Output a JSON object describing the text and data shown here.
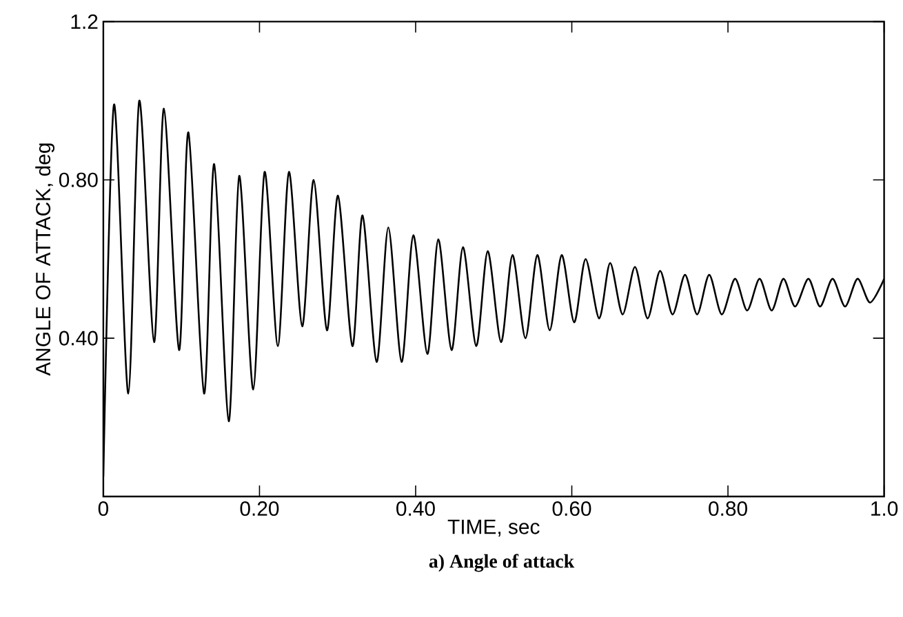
{
  "chart_data": {
    "type": "line",
    "title": "**a) Angle of attack**",
    "xlabel": "TIME, sec",
    "ylabel": "ANGLE OF ATTACK, deg",
    "xlim": [
      0,
      1.0
    ],
    "ylim": [
      0,
      1.2
    ],
    "xticks": [
      0,
      {
        "value": 0.2,
        "label": "0.20"
      },
      {
        "value": 0.4,
        "label": "0.40"
      },
      {
        "value": 0.6,
        "label": "0.60"
      },
      {
        "value": 0.8,
        "label": "0.80"
      },
      {
        "value": 1.0,
        "label": "1.0"
      }
    ],
    "yticks": [
      {
        "value": 0,
        "label": null
      },
      {
        "value": 0.4,
        "label": "0.40"
      },
      {
        "value": 0.8,
        "label": "0.80"
      },
      {
        "value": 1.2,
        "label": "1.2"
      }
    ],
    "marker": "none",
    "line_style": "solid",
    "series": [
      {
        "color": "#000000",
        "x": [
          0,
          0.0136,
          0.032,
          0.046,
          0.065,
          0.0776,
          0.097,
          0.109,
          0.129,
          0.142,
          0.1606,
          0.174,
          0.192,
          0.2065,
          0.2235,
          0.2377,
          0.2547,
          0.2694,
          0.2864,
          0.3005,
          0.319,
          0.332,
          0.35,
          0.365,
          0.382,
          0.397,
          0.415,
          0.429,
          0.446,
          0.4606,
          0.4776,
          0.4923,
          0.5094,
          0.524,
          0.5406,
          0.5558,
          0.5717,
          0.587,
          0.603,
          0.6176,
          0.635,
          0.649,
          0.665,
          0.681,
          0.697,
          0.713,
          0.729,
          0.745,
          0.7605,
          0.776,
          0.792,
          0.809,
          0.8246,
          0.8405,
          0.856,
          0.871,
          0.886,
          0.903,
          0.918,
          0.934,
          0.95,
          0.966,
          0.982,
          1.0
        ],
        "values": [
          0.05,
          0.99,
          0.26,
          1.0,
          0.39,
          0.98,
          0.37,
          0.92,
          0.26,
          0.84,
          0.19,
          0.81,
          0.27,
          0.82,
          0.38,
          0.82,
          0.43,
          0.8,
          0.42,
          0.76,
          0.38,
          0.71,
          0.34,
          0.68,
          0.34,
          0.66,
          0.36,
          0.65,
          0.37,
          0.63,
          0.38,
          0.62,
          0.39,
          0.61,
          0.4,
          0.61,
          0.42,
          0.61,
          0.44,
          0.6,
          0.45,
          0.59,
          0.46,
          0.58,
          0.45,
          0.57,
          0.46,
          0.56,
          0.46,
          0.56,
          0.46,
          0.55,
          0.47,
          0.55,
          0.47,
          0.55,
          0.48,
          0.55,
          0.48,
          0.55,
          0.48,
          0.55,
          0.49,
          0.55
        ]
      }
    ]
  }
}
